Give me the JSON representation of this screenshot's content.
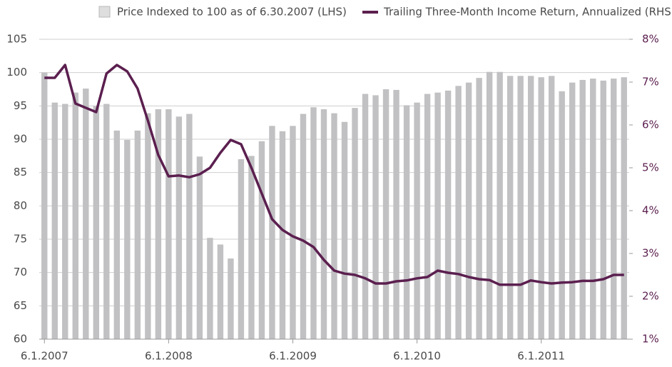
{
  "chart_data": {
    "type": "bar_line",
    "legend": {
      "bar": "Price Indexed to 100 as of 6.30.2007 (LHS)",
      "line": "Trailing Three-Month Income Return, Annualized (RHS)"
    },
    "categories": [
      "6.1.2007",
      null,
      null,
      null,
      null,
      null,
      null,
      null,
      null,
      null,
      null,
      null,
      "6.1.2008",
      null,
      null,
      null,
      null,
      null,
      null,
      null,
      null,
      null,
      null,
      null,
      "6.1.2009",
      null,
      null,
      null,
      null,
      null,
      null,
      null,
      null,
      null,
      null,
      null,
      "6.1.2010",
      null,
      null,
      null,
      null,
      null,
      null,
      null,
      null,
      null,
      null,
      null,
      "6.1.2011",
      null,
      null,
      null,
      null,
      null,
      null,
      null,
      null
    ],
    "series": [
      {
        "name": "Price Indexed to 100 as of 6.30.2007 (LHS)",
        "color": "#c1c1c3",
        "values": [
          100,
          95.5,
          95.3,
          97,
          97.6,
          95,
          95.3,
          91.3,
          89.9,
          91.3,
          93.9,
          94.5,
          94.5,
          93.4,
          93.8,
          87.4,
          75.2,
          74.2,
          72.1,
          87,
          87.5,
          89.7,
          92,
          91.2,
          92,
          93.8,
          94.8,
          94.5,
          93.9,
          92.6,
          94.7,
          96.8,
          96.6,
          97.5,
          97.4,
          95.1,
          95.5,
          96.8,
          97,
          97.3,
          98,
          98.5,
          99.2,
          100.1,
          100.1,
          99.5,
          99.5,
          99.5,
          99.3,
          99.5,
          97.2,
          98.5,
          98.9,
          99.1,
          98.8,
          99.1,
          99.3
        ]
      },
      {
        "name": "Trailing Three-Month Income Return, Annualized (RHS)",
        "color": "#5b1f4f",
        "axis": "y2",
        "values": [
          7.1,
          7.1,
          7.4,
          6.5,
          6.4,
          6.3,
          7.2,
          7.4,
          7.25,
          6.85,
          6.1,
          5.3,
          4.8,
          4.82,
          4.78,
          4.85,
          5.0,
          5.35,
          5.65,
          5.55,
          5.0,
          4.4,
          3.8,
          3.55,
          3.4,
          3.3,
          3.15,
          2.85,
          2.6,
          2.53,
          2.5,
          2.42,
          2.3,
          2.3,
          2.35,
          2.37,
          2.42,
          2.45,
          2.6,
          2.55,
          2.52,
          2.45,
          2.4,
          2.38,
          2.27,
          2.27,
          2.27,
          2.37,
          2.33,
          2.3,
          2.32,
          2.33,
          2.36,
          2.36,
          2.4,
          2.5,
          2.5
        ]
      }
    ],
    "ylim": [
      60,
      105
    ],
    "yticks": [
      60,
      65,
      70,
      75,
      80,
      85,
      90,
      95,
      100,
      105
    ],
    "y2lim": [
      1,
      8
    ],
    "y2ticks": [
      {
        "value": 1,
        "label": "1%"
      },
      {
        "value": 2,
        "label": "2%"
      },
      {
        "value": 3,
        "label": "3%"
      },
      {
        "value": 4,
        "label": "4%"
      },
      {
        "value": 5,
        "label": "5%"
      },
      {
        "value": 6,
        "label": "6%"
      },
      {
        "value": 7,
        "label": "7%"
      },
      {
        "value": 8,
        "label": "8%"
      }
    ],
    "grid": true
  }
}
